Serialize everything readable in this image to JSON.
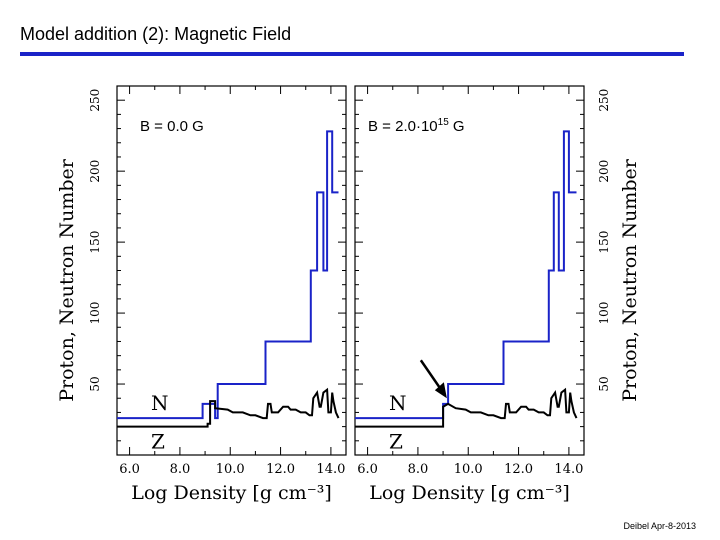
{
  "slide": {
    "title": "Model addition (2): Magnetic Field",
    "footer": "Deibel Apr-8-2013",
    "accent_color": "#1a23c8"
  },
  "chart_data": [
    {
      "type": "line",
      "panel_label": "B = 0.0 G",
      "xlabel": "Log Density [g cm⁻³]",
      "ylabel": "Proton, Neutron Number",
      "xlim": [
        5.5,
        14.6
      ],
      "ylim": [
        0,
        260
      ],
      "x_ticks": [
        "6.0",
        "8.0",
        "10.0",
        "12.0",
        "14.0"
      ],
      "y_ticks": [
        "50",
        "100",
        "150",
        "200",
        "250"
      ],
      "grid": false,
      "series": [
        {
          "name": "N",
          "color": "#1a23c8",
          "points": [
            [
              5.5,
              26
            ],
            [
              8.9,
              26
            ],
            [
              8.9,
              36
            ],
            [
              9.4,
              36
            ],
            [
              9.4,
              26
            ],
            [
              9.4,
              26
            ],
            [
              9.5,
              26
            ],
            [
              9.5,
              50
            ],
            [
              11.4,
              50
            ],
            [
              11.4,
              80
            ],
            [
              13.2,
              80
            ],
            [
              13.2,
              130
            ],
            [
              13.45,
              130
            ],
            [
              13.45,
              185
            ],
            [
              13.7,
              185
            ],
            [
              13.7,
              130
            ],
            [
              13.85,
              130
            ],
            [
              13.85,
              228
            ],
            [
              14.05,
              228
            ],
            [
              14.05,
              185
            ],
            [
              14.3,
              185
            ]
          ]
        },
        {
          "name": "Z",
          "color": "#000000",
          "points": [
            [
              5.5,
              20
            ],
            [
              9.1,
              20
            ],
            [
              9.1,
              22
            ],
            [
              9.2,
              22
            ],
            [
              9.2,
              38
            ],
            [
              9.4,
              38
            ],
            [
              9.4,
              33
            ],
            [
              9.9,
              32
            ],
            [
              10.1,
              30
            ],
            [
              10.5,
              30
            ],
            [
              10.8,
              28
            ],
            [
              11.0,
              28
            ],
            [
              11.3,
              26
            ],
            [
              11.45,
              26
            ],
            [
              11.5,
              36
            ],
            [
              11.6,
              36
            ],
            [
              11.65,
              30
            ],
            [
              11.9,
              30
            ],
            [
              12.1,
              34
            ],
            [
              12.3,
              34
            ],
            [
              12.4,
              32
            ],
            [
              12.6,
              32
            ],
            [
              12.8,
              30
            ],
            [
              13.0,
              30
            ],
            [
              13.15,
              28
            ],
            [
              13.25,
              28
            ],
            [
              13.3,
              40
            ],
            [
              13.45,
              44
            ],
            [
              13.55,
              34
            ],
            [
              13.6,
              34
            ],
            [
              13.7,
              44
            ],
            [
              13.85,
              46
            ],
            [
              13.9,
              30
            ],
            [
              14.0,
              30
            ],
            [
              14.05,
              44
            ],
            [
              14.1,
              38
            ],
            [
              14.2,
              30
            ],
            [
              14.3,
              26
            ]
          ]
        }
      ]
    },
    {
      "type": "line",
      "panel_label": "B = 2.0·10",
      "panel_label_sup": "15",
      "panel_label_unit": " G",
      "xlabel": "Log Density [g cm⁻³]",
      "ylabel": "Proton, Neutron Number",
      "xlim": [
        5.5,
        14.6
      ],
      "ylim": [
        0,
        260
      ],
      "x_ticks": [
        "6.0",
        "8.0",
        "10.0",
        "12.0",
        "14.0"
      ],
      "y_ticks": [
        "50",
        "100",
        "150",
        "200",
        "250"
      ],
      "grid": false,
      "annotation": "arrow pointing to step near log density 9.2",
      "series": [
        {
          "name": "N",
          "color": "#1a23c8",
          "points": [
            [
              5.5,
              26
            ],
            [
              9.0,
              26
            ],
            [
              9.0,
              36
            ],
            [
              9.2,
              36
            ],
            [
              9.2,
              50
            ],
            [
              11.4,
              50
            ],
            [
              11.4,
              80
            ],
            [
              13.2,
              80
            ],
            [
              13.2,
              130
            ],
            [
              13.4,
              130
            ],
            [
              13.4,
              185
            ],
            [
              13.6,
              185
            ],
            [
              13.6,
              130
            ],
            [
              13.8,
              130
            ],
            [
              13.8,
              228
            ],
            [
              14.0,
              228
            ],
            [
              14.0,
              185
            ],
            [
              14.3,
              185
            ]
          ]
        },
        {
          "name": "Z",
          "color": "#000000",
          "points": [
            [
              5.5,
              20
            ],
            [
              9.0,
              20
            ],
            [
              9.0,
              34
            ],
            [
              9.2,
              36
            ],
            [
              9.5,
              33
            ],
            [
              9.9,
              32
            ],
            [
              10.1,
              30
            ],
            [
              10.5,
              30
            ],
            [
              10.8,
              28
            ],
            [
              11.0,
              28
            ],
            [
              11.3,
              26
            ],
            [
              11.45,
              26
            ],
            [
              11.5,
              36
            ],
            [
              11.6,
              36
            ],
            [
              11.65,
              30
            ],
            [
              11.9,
              30
            ],
            [
              12.1,
              34
            ],
            [
              12.3,
              34
            ],
            [
              12.4,
              32
            ],
            [
              12.6,
              32
            ],
            [
              12.8,
              30
            ],
            [
              13.0,
              30
            ],
            [
              13.15,
              28
            ],
            [
              13.25,
              28
            ],
            [
              13.3,
              40
            ],
            [
              13.45,
              44
            ],
            [
              13.55,
              34
            ],
            [
              13.6,
              34
            ],
            [
              13.7,
              44
            ],
            [
              13.85,
              46
            ],
            [
              13.9,
              30
            ],
            [
              14.0,
              30
            ],
            [
              14.05,
              44
            ],
            [
              14.1,
              38
            ],
            [
              14.2,
              30
            ],
            [
              14.3,
              26
            ]
          ]
        }
      ]
    }
  ]
}
